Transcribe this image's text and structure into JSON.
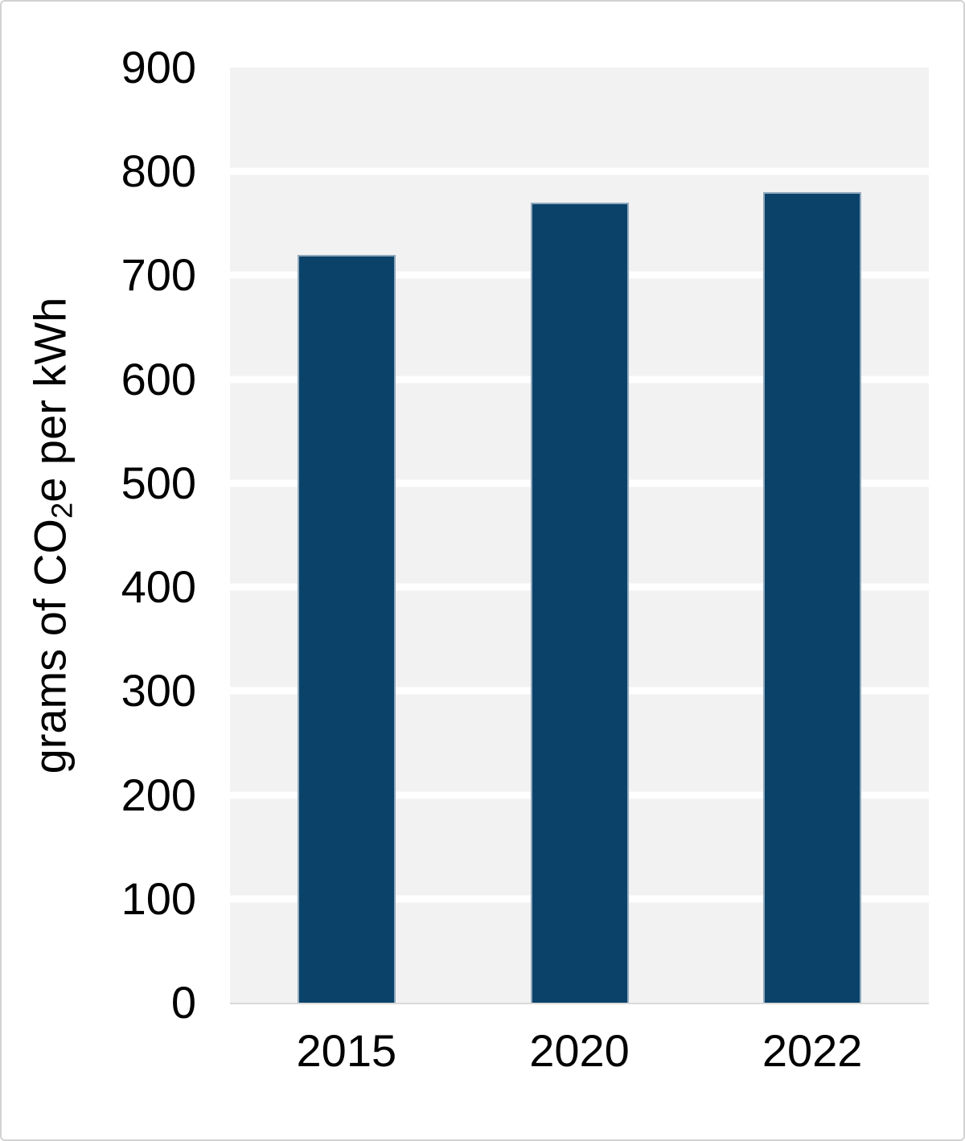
{
  "chart_data": {
    "type": "bar",
    "title": "",
    "categories": [
      "2015",
      "2020",
      "2022"
    ],
    "values": [
      720,
      770,
      780
    ],
    "xlabel": "",
    "ylabel": "grams of CO2e per kWh",
    "ylabel_parts": {
      "prefix": "grams of CO",
      "sub": "2",
      "suffix": "e per kWh"
    },
    "ylim": [
      0,
      900
    ],
    "yticks": [
      0,
      100,
      200,
      300,
      400,
      500,
      600,
      700,
      800,
      900
    ],
    "grid": "horizontal-white-stripes",
    "legend": "none"
  },
  "colors": {
    "bar": "#0a426a",
    "plot_background": "#f2f2f2",
    "gridline": "#ffffff",
    "canvas_background": "#ffffff",
    "frame_border": "#d2d2d2",
    "axis_line": "#d9d9d9",
    "text": "#000000"
  }
}
